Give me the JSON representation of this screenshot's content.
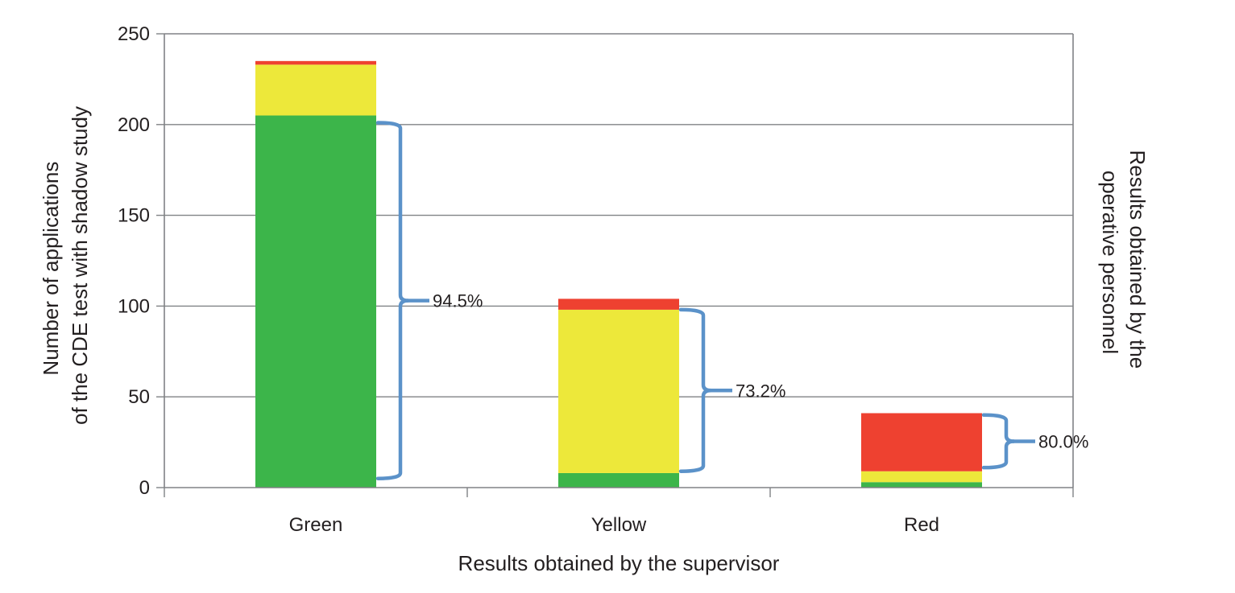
{
  "chart_data": {
    "type": "bar",
    "stacked": true,
    "categories": [
      "Green",
      "Yellow",
      "Red"
    ],
    "series": [
      {
        "color": "#3cb54a",
        "values": [
          205,
          8,
          3
        ]
      },
      {
        "color": "#ede83a",
        "values": [
          28,
          90,
          6
        ]
      },
      {
        "color": "#ee4130",
        "values": [
          2,
          6,
          32
        ]
      }
    ],
    "annotations": [
      {
        "category": "Green",
        "label": "94.5%",
        "from": 5,
        "to": 201
      },
      {
        "category": "Yellow",
        "label": "73.2%",
        "from": 9,
        "to": 98
      },
      {
        "category": "Red",
        "label": "80.0%",
        "from": 11,
        "to": 40
      }
    ],
    "xlabel": "Results obtained by the supervisor",
    "ylabel": [
      "Number of applications",
      "of the CDE test with shadow study"
    ],
    "y2label": [
      "Results obtained by the",
      "operative personnel"
    ],
    "ylim": [
      0,
      250
    ],
    "yticks": [
      0,
      50,
      100,
      150,
      200,
      250
    ],
    "grid": true,
    "colors": {
      "grid": "#808285",
      "brace": "#5b92c9",
      "text": "#231f20"
    }
  }
}
